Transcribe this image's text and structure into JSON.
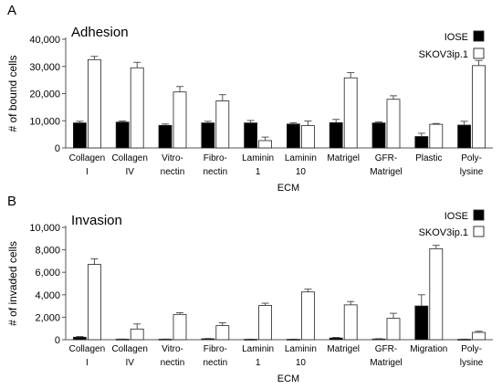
{
  "chart_data": [
    {
      "type": "bar",
      "panel_label": "A",
      "title": "Adhesion",
      "xlabel": "ECM",
      "ylabel": "# of bound cells",
      "ylim": [
        0,
        40000
      ],
      "yticks": [
        "0",
        "10,000",
        "20,000",
        "30,000",
        "40,000"
      ],
      "ytick_values": [
        0,
        10000,
        20000,
        30000,
        40000
      ],
      "categories": [
        [
          "Collagen",
          "I"
        ],
        [
          "Collagen",
          "IV"
        ],
        [
          "Vitro-",
          "nectin"
        ],
        [
          "Fibro-",
          "nectin"
        ],
        [
          "Laminin",
          "1"
        ],
        [
          "Laminin",
          "10"
        ],
        [
          "Matrigel",
          ""
        ],
        [
          "GFR-",
          "Matrigel"
        ],
        [
          "Plastic",
          ""
        ],
        [
          "Poly-",
          "lysine"
        ]
      ],
      "series": [
        {
          "name": "IOSE",
          "color": "#000000",
          "values": [
            9200,
            9500,
            8300,
            9200,
            9200,
            8800,
            9300,
            9200,
            4200,
            8400
          ],
          "errors": [
            600,
            400,
            500,
            600,
            900,
            500,
            1200,
            400,
            1200,
            1400
          ]
        },
        {
          "name": "SKOV3ip.1",
          "color": "#ffffff",
          "values": [
            32500,
            29500,
            20600,
            17300,
            2700,
            8200,
            25800,
            17900,
            8700,
            30300
          ],
          "errors": [
            1200,
            2000,
            2000,
            2300,
            1300,
            1700,
            1900,
            1300,
            300,
            1900
          ]
        }
      ],
      "legend_position": "top-right",
      "grid": false
    },
    {
      "type": "bar",
      "panel_label": "B",
      "title": "Invasion",
      "xlabel": "ECM",
      "ylabel": "# of invaded cells",
      "ylim": [
        0,
        10000
      ],
      "yticks": [
        "0",
        "2,000",
        "4,000",
        "6,000",
        "8,000",
        "10,000"
      ],
      "ytick_values": [
        0,
        2000,
        4000,
        6000,
        8000,
        10000
      ],
      "categories": [
        [
          "Collagen",
          "I"
        ],
        [
          "Collagen",
          "IV"
        ],
        [
          "Vitro-",
          "nectin"
        ],
        [
          "Fibro-",
          "nectin"
        ],
        [
          "Laminin",
          "1"
        ],
        [
          "Laminin",
          "10"
        ],
        [
          "Matrigel",
          ""
        ],
        [
          "GFR-",
          "Matrigel"
        ],
        [
          "Migration",
          ""
        ],
        [
          "Poly-",
          "lysine"
        ]
      ],
      "series": [
        {
          "name": "IOSE",
          "color": "#000000",
          "values": [
            220,
            40,
            40,
            80,
            30,
            30,
            150,
            60,
            3000,
            30
          ],
          "errors": [
            60,
            20,
            20,
            30,
            20,
            20,
            50,
            30,
            1000,
            20
          ]
        },
        {
          "name": "SKOV3ip.1",
          "color": "#ffffff",
          "values": [
            6700,
            950,
            2250,
            1250,
            3050,
            4250,
            3100,
            1900,
            8100,
            650
          ],
          "errors": [
            500,
            450,
            150,
            250,
            200,
            250,
            300,
            450,
            300,
            100
          ]
        }
      ],
      "legend_position": "top-right",
      "grid": false
    }
  ]
}
